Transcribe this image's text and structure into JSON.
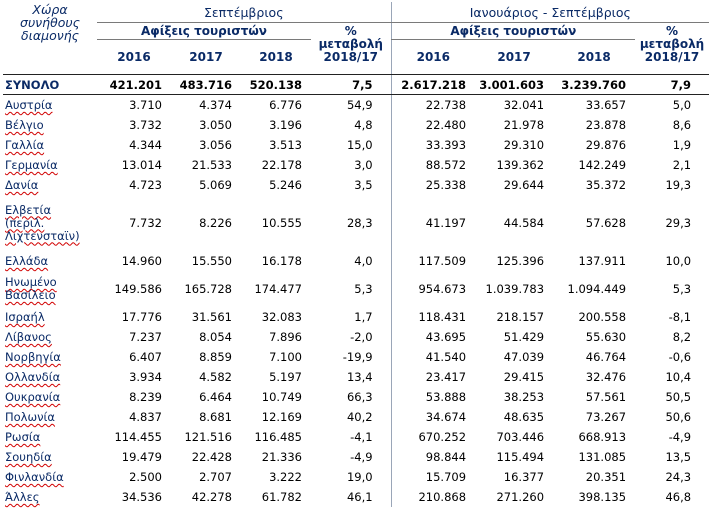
{
  "headers": {
    "country_col": [
      "Χώρα",
      "συνήθους",
      "διαμονής"
    ],
    "period1": "Σεπτέμβριος",
    "period2": "Ιανουάριος - Σεπτέμβριος",
    "arrivals": "Αφίξεις τουριστών",
    "years": [
      "2016",
      "2017",
      "2018"
    ],
    "pct_line1": "%",
    "pct_line2": "μεταβολή",
    "pct_line3": "2018/17"
  },
  "total": {
    "name": "ΣΥΝΟΛΟ",
    "v": [
      "421.201",
      "483.716",
      "520.138",
      "7,5",
      "2.617.218",
      "3.001.603",
      "3.239.760",
      "7,9"
    ]
  },
  "rows": [
    {
      "name": [
        "Αυστρία"
      ],
      "v": [
        "3.710",
        "4.374",
        "6.776",
        "54,9",
        "22.738",
        "32.041",
        "33.657",
        "5,0"
      ]
    },
    {
      "name": [
        "Βέλγιο"
      ],
      "v": [
        "3.732",
        "3.050",
        "3.196",
        "4,8",
        "22.480",
        "21.978",
        "23.878",
        "8,6"
      ]
    },
    {
      "name": [
        "Γαλλία"
      ],
      "v": [
        "4.344",
        "3.056",
        "3.513",
        "15,0",
        "33.393",
        "29.310",
        "29.876",
        "1,9"
      ]
    },
    {
      "name": [
        "Γερμανία"
      ],
      "v": [
        "13.014",
        "21.533",
        "22.178",
        "3,0",
        "88.572",
        "139.362",
        "142.249",
        "2,1"
      ]
    },
    {
      "name": [
        "Δανία"
      ],
      "v": [
        "4.723",
        "5.069",
        "5.246",
        "3,5",
        "25.338",
        "29.644",
        "35.372",
        "19,3"
      ]
    },
    {
      "name": [
        "Ελβετία",
        "(περιλ.",
        "Λιχτενσταϊν)"
      ],
      "v": [
        "7.732",
        "8.226",
        "10.555",
        "28,3",
        "41.197",
        "44.584",
        "57.628",
        "29,3"
      ]
    },
    {
      "name": [
        "Ελλάδα"
      ],
      "v": [
        "14.960",
        "15.550",
        "16.178",
        "4,0",
        "117.509",
        "125.396",
        "137.911",
        "10,0"
      ]
    },
    {
      "name": [
        "Ηνωμένο",
        "Βασίλειο"
      ],
      "v": [
        "149.586",
        "165.728",
        "174.477",
        "5,3",
        "954.673",
        "1.039.783",
        "1.094.449",
        "5,3"
      ]
    },
    {
      "name": [
        "Ισραήλ"
      ],
      "v": [
        "17.776",
        "31.561",
        "32.083",
        "1,7",
        "118.431",
        "218.157",
        "200.558",
        "-8,1"
      ]
    },
    {
      "name": [
        "Λίβανος"
      ],
      "v": [
        "7.237",
        "8.054",
        "7.896",
        "-2,0",
        "43.695",
        "51.429",
        "55.630",
        "8,2"
      ]
    },
    {
      "name": [
        "Νορβηγία"
      ],
      "v": [
        "6.407",
        "8.859",
        "7.100",
        "-19,9",
        "41.540",
        "47.039",
        "46.764",
        "-0,6"
      ]
    },
    {
      "name": [
        "Ολλανδία"
      ],
      "v": [
        "3.934",
        "4.582",
        "5.197",
        "13,4",
        "23.417",
        "29.415",
        "32.476",
        "10,4"
      ]
    },
    {
      "name": [
        "Ουκρανία"
      ],
      "v": [
        "8.239",
        "6.464",
        "10.749",
        "66,3",
        "53.888",
        "38.253",
        "57.561",
        "50,5"
      ]
    },
    {
      "name": [
        "Πολωνία"
      ],
      "v": [
        "4.837",
        "8.681",
        "12.169",
        "40,2",
        "34.674",
        "48.635",
        "73.267",
        "50,6"
      ]
    },
    {
      "name": [
        "Ρωσία"
      ],
      "v": [
        "114.455",
        "121.516",
        "116.485",
        "-4,1",
        "670.252",
        "703.446",
        "668.913",
        "-4,9"
      ]
    },
    {
      "name": [
        "Σουηδία"
      ],
      "v": [
        "19.479",
        "22.428",
        "21.336",
        "-4,9",
        "98.844",
        "115.494",
        "131.085",
        "13,5"
      ]
    },
    {
      "name": [
        "Φινλανδία"
      ],
      "v": [
        "2.500",
        "2.707",
        "3.222",
        "19,0",
        "15.709",
        "16.377",
        "20.351",
        "24,3"
      ]
    },
    {
      "name": [
        "Άλλες"
      ],
      "v": [
        "34.536",
        "42.278",
        "61.782",
        "46,1",
        "210.868",
        "271.260",
        "398.135",
        "46,8"
      ]
    }
  ]
}
